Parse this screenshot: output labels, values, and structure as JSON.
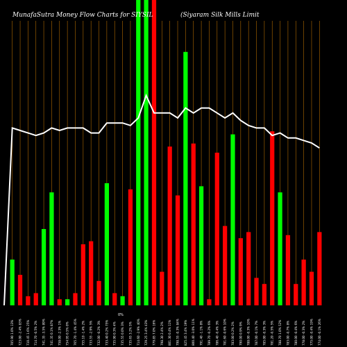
{
  "chart_data": {
    "type": "bar",
    "title": "MunafaSutra  Money Flow  Charts for SIYSIL",
    "subtitle": "(Siyaram Silk Mills Limit",
    "ylim": [
      0,
      100
    ],
    "line_ylim": [
      0,
      100
    ],
    "grid": true,
    "zero_label": "0%",
    "colors": {
      "up": "#00ff00",
      "down": "#ff0000",
      "line": "#ffffff",
      "grid": "#b36b00",
      "background": "#000000"
    },
    "bars": [
      {
        "value": 15,
        "dir": "up",
        "label": "705.90 1.0% 13%"
      },
      {
        "value": 10,
        "dir": "down",
        "label": "723.00 -2.4% 83%"
      },
      {
        "value": 3,
        "dir": "down",
        "label": "710.45 1.6% 25%"
      },
      {
        "value": 4,
        "dir": "down",
        "label": "714.70 -0.5% 2%"
      },
      {
        "value": 25,
        "dir": "up",
        "label": "741.35 -3.5% 89%"
      },
      {
        "value": 37,
        "dir": "up",
        "label": "741.35 0.1% 87%"
      },
      {
        "value": 2,
        "dir": "down",
        "label": "758.00 -2.3% 1%"
      },
      {
        "value": 2,
        "dir": "up",
        "label": "754.95 0.5% 0%"
      },
      {
        "value": 4,
        "dir": "down",
        "label": "765.70 -1.4% 45%"
      },
      {
        "value": 20,
        "dir": "down",
        "label": "755.10 -1.4% 2%"
      },
      {
        "value": 21,
        "dir": "down",
        "label": "733.55 -2.9% 5%"
      },
      {
        "value": 8,
        "dir": "down",
        "label": "732.00 -0.2% 3%"
      },
      {
        "value": 40,
        "dir": "up",
        "label": "733.40 0.2% 75%"
      },
      {
        "value": 4,
        "dir": "down",
        "label": "735.90 0.3% 4%"
      },
      {
        "value": 3,
        "dir": "up",
        "label": "735.55 0.0% 3%"
      },
      {
        "value": 38,
        "dir": "down",
        "label": "735.65 3.2% 5%"
      },
      {
        "value": 100,
        "dir": "up",
        "label": "714.60 -2.9% 40%"
      },
      {
        "value": 100,
        "dir": "up",
        "label": "729.25 3.4% 43%"
      },
      {
        "value": 100,
        "dir": "down",
        "label": "779.85 7.0% 16%"
      },
      {
        "value": 11,
        "dir": "down",
        "label": "798.30 2.4% 2%"
      },
      {
        "value": 52,
        "dir": "down",
        "label": "801.30 0.4% 11%"
      },
      {
        "value": 36,
        "dir": "down",
        "label": "798.55 -0.3% 84%"
      },
      {
        "value": 83,
        "dir": "up",
        "label": "825.45 3.4% 19%"
      },
      {
        "value": 53,
        "dir": "down",
        "label": "800.40 -3.0% 11%"
      },
      {
        "value": 39,
        "dir": "up",
        "label": "791.40 -1.1% 8%"
      },
      {
        "value": 2,
        "dir": "down",
        "label": "789.70 -0.2% 6%"
      },
      {
        "value": 50,
        "dir": "down",
        "label": "786.40 -0.4% 3%"
      },
      {
        "value": 26,
        "dir": "down",
        "label": "781.60 -0.6% 10%"
      },
      {
        "value": 56,
        "dir": "up",
        "label": "783.00 0.2% 2%"
      },
      {
        "value": 22,
        "dir": "down",
        "label": "790.00 0.9% 9%"
      },
      {
        "value": 24,
        "dir": "down",
        "label": "788.00 -0.3% 10%"
      },
      {
        "value": 9,
        "dir": "down",
        "label": "787.00 -0.1% 7%"
      },
      {
        "value": 7,
        "dir": "down",
        "label": "785.00 -0.3% 3%"
      },
      {
        "value": 57,
        "dir": "down",
        "label": "781.20 -0.5% 5%"
      },
      {
        "value": 37,
        "dir": "up",
        "label": "788.70 1.0% 52%"
      },
      {
        "value": 23,
        "dir": "down",
        "label": "783.00 -0.7% 8%"
      },
      {
        "value": 7,
        "dir": "down",
        "label": "780.00 -0.4% 6%"
      },
      {
        "value": 15,
        "dir": "down",
        "label": "778.00 -0.3% 2%"
      },
      {
        "value": 11,
        "dir": "down",
        "label": "775.00 -0.4% 19%"
      },
      {
        "value": 24,
        "dir": "down",
        "label": "774.00 -0.1% 26%"
      }
    ],
    "line": [
      0,
      71,
      70,
      69,
      68,
      69,
      71,
      70,
      71,
      71,
      71,
      69,
      69,
      73,
      73,
      73,
      72,
      75,
      84,
      77,
      77,
      77,
      75,
      79,
      77,
      79,
      79,
      77,
      75,
      77,
      74,
      72,
      71,
      71,
      68,
      69,
      67,
      67,
      66,
      65,
      63
    ]
  }
}
